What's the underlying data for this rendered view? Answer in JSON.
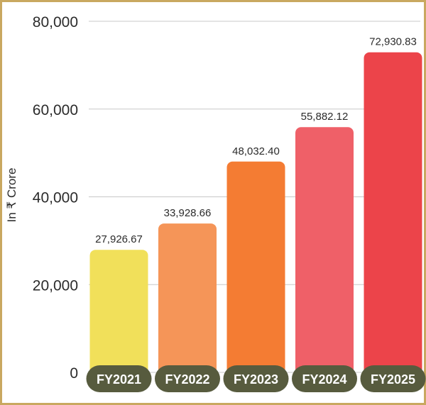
{
  "chart_data": {
    "type": "bar",
    "title": "",
    "xlabel": "",
    "ylabel": "In ₹ Crore",
    "categories": [
      "FY2021",
      "FY2022",
      "FY2023",
      "FY2024",
      "FY2025"
    ],
    "values": [
      27926.67,
      33928.66,
      48032.4,
      55882.12,
      72930.83
    ],
    "value_labels": [
      "27,926.67",
      "33,928.66",
      "48,032.40",
      "55,882.12",
      "72,930.83"
    ],
    "ylim": [
      0,
      80000
    ],
    "yticks": [
      0,
      20000,
      40000,
      60000,
      80000
    ],
    "ytick_labels": [
      "0",
      "20,000",
      "40,000",
      "60,000",
      "80,000"
    ],
    "grid": true,
    "bar_colors": [
      "#f1e05a",
      "#f59558",
      "#f47c33",
      "#ef6068",
      "#ec444a"
    ],
    "category_pill_color": "#575b3e",
    "frame_color": "#c9a860"
  }
}
